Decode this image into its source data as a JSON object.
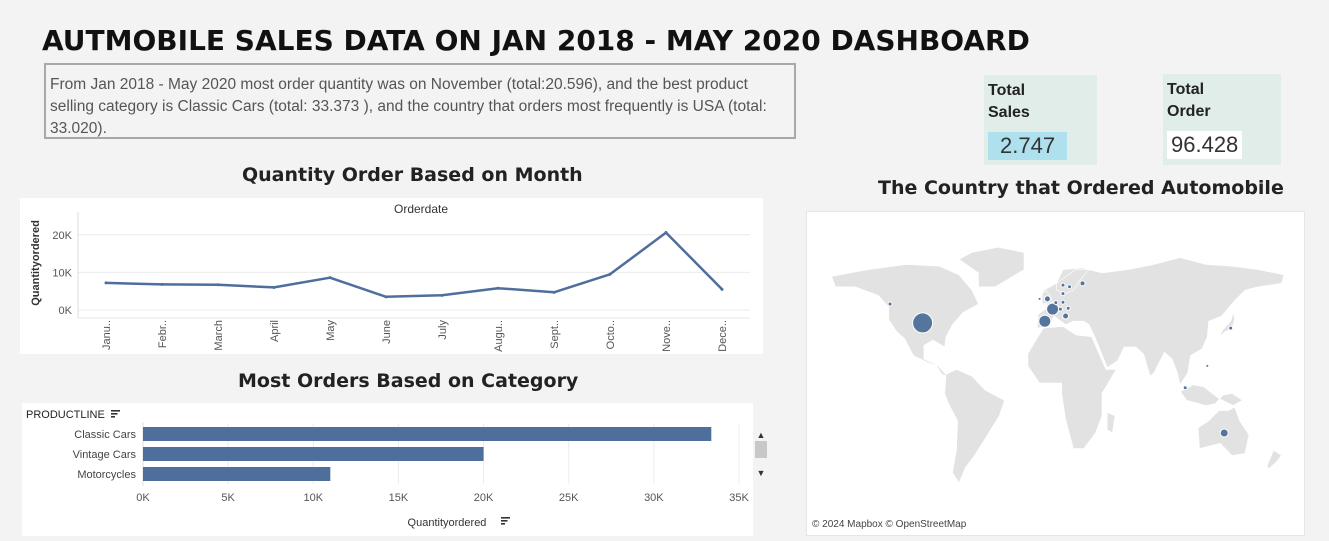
{
  "dashboard": {
    "title": "AUTMOBILE SALES DATA ON JAN 2018 - MAY 2020 DASHBOARD",
    "summary": "From Jan 2018 - May 2020 most order quantity was on November (total:20.596), and the best product selling category is Classic Cars (total: 33.373 ), and the country that orders most frequently is USA (total: 33.020)."
  },
  "kpis": {
    "sales": {
      "label": "Total Sales",
      "value": "2.747",
      "highlight": "#aee0ee"
    },
    "order": {
      "label": "Total Order",
      "value": "96.428"
    }
  },
  "line_section": {
    "title": "Quantity Order Based on Month"
  },
  "bar_section": {
    "title": "Most Orders Based on Category",
    "sort_icon": "sort-icon"
  },
  "map_section": {
    "title": "The Country that Ordered Automobile",
    "attribution": "© 2024 Mapbox © OpenStreetMap"
  },
  "colors": {
    "series": "#4e6f9b",
    "map_land": "#e2e2e2",
    "map_water": "#ffffff"
  },
  "chart_data": [
    {
      "type": "line",
      "title": "Orderdate",
      "xlabel": "",
      "ylabel": "Quantityordered",
      "categories": [
        "Janu..",
        "Febr..",
        "March",
        "April",
        "May",
        "June",
        "July",
        "Augu..",
        "Sept..",
        "Octo..",
        "Nove..",
        "Dece.."
      ],
      "values": [
        7200,
        6800,
        6700,
        6000,
        8600,
        3500,
        3900,
        5800,
        4700,
        9500,
        20596,
        5500
      ],
      "yticks": [
        "0K",
        "10K",
        "20K"
      ],
      "ylim": [
        0,
        25000
      ],
      "grid": true
    },
    {
      "type": "bar",
      "orientation": "horizontal",
      "dimension_label": "PRODUCTLINE",
      "xlabel": "Quantityordered",
      "categories": [
        "Classic Cars",
        "Vintage Cars",
        "Motorcycles"
      ],
      "values": [
        33373,
        20000,
        11000
      ],
      "xticks": [
        "0K",
        "5K",
        "10K",
        "15K",
        "20K",
        "25K",
        "30K",
        "35K"
      ],
      "xlim": [
        0,
        35000
      ],
      "grid": true
    }
  ],
  "map_points": [
    {
      "name": "USA",
      "lon": -98,
      "lat": 39,
      "size": 10
    },
    {
      "name": "Canada",
      "lon": -123,
      "lat": 50,
      "size": 2
    },
    {
      "name": "Spain",
      "lon": -4,
      "lat": 40,
      "size": 6
    },
    {
      "name": "France",
      "lon": 2,
      "lat": 47,
      "size": 6
    },
    {
      "name": "UK",
      "lon": -2,
      "lat": 53,
      "size": 3
    },
    {
      "name": "Ireland",
      "lon": -8,
      "lat": 53,
      "size": 1.5
    },
    {
      "name": "Belgium",
      "lon": 4.5,
      "lat": 50.8,
      "size": 2
    },
    {
      "name": "Switzerland",
      "lon": 8,
      "lat": 47,
      "size": 2
    },
    {
      "name": "Italy",
      "lon": 12,
      "lat": 43,
      "size": 3
    },
    {
      "name": "Austria",
      "lon": 14,
      "lat": 47.5,
      "size": 2
    },
    {
      "name": "Germany",
      "lon": 10,
      "lat": 51,
      "size": 2
    },
    {
      "name": "Denmark",
      "lon": 10,
      "lat": 56,
      "size": 2
    },
    {
      "name": "Sweden",
      "lon": 15,
      "lat": 60,
      "size": 2
    },
    {
      "name": "Norway",
      "lon": 10,
      "lat": 61,
      "size": 2
    },
    {
      "name": "Finland",
      "lon": 25,
      "lat": 62,
      "size": 2.5
    },
    {
      "name": "Japan",
      "lon": 139,
      "lat": 36,
      "size": 2
    },
    {
      "name": "Philippines",
      "lon": 121,
      "lat": 14,
      "size": 1.5
    },
    {
      "name": "Singapore",
      "lon": 104,
      "lat": 1.3,
      "size": 2
    },
    {
      "name": "Australia",
      "lon": 134,
      "lat": -25,
      "size": 4
    }
  ]
}
